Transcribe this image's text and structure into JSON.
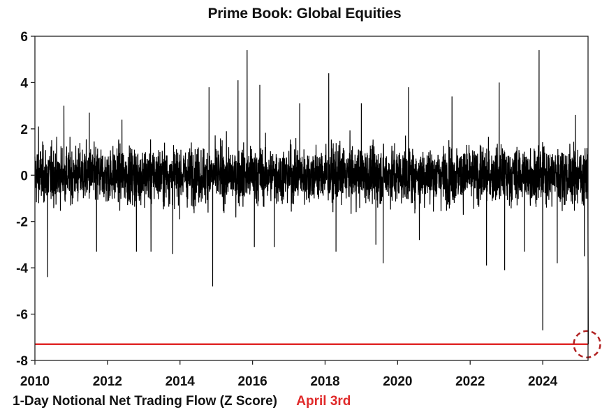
{
  "chart_data": {
    "type": "line",
    "title": "Prime Book: Global Equities",
    "xlabel": "",
    "ylabel": "",
    "xlim": [
      2010,
      2025.25
    ],
    "ylim": [
      -8,
      6
    ],
    "xticks": [
      "2010",
      "2012",
      "2014",
      "2016",
      "2018",
      "2020",
      "2022",
      "2024"
    ],
    "yticks": [
      "6",
      "4",
      "2",
      "0",
      "-2",
      "-4",
      "-6",
      "-8"
    ],
    "grid": false,
    "legend_position": "bottom-left",
    "series": [
      {
        "name": "1-Day Notional Net Trading Flow (Z Score)",
        "color": "#000000",
        "note_style": "dense daily noise around 0, roughly within -2 to 2",
        "spikes": [
          {
            "x": 2010.1,
            "y": 2.1
          },
          {
            "x": 2010.35,
            "y": -4.4
          },
          {
            "x": 2010.8,
            "y": 3.0
          },
          {
            "x": 2011.5,
            "y": 2.7
          },
          {
            "x": 2011.7,
            "y": -3.3
          },
          {
            "x": 2012.4,
            "y": 2.4
          },
          {
            "x": 2012.8,
            "y": -3.3
          },
          {
            "x": 2013.2,
            "y": -3.3
          },
          {
            "x": 2013.8,
            "y": -3.4
          },
          {
            "x": 2014.8,
            "y": 3.8
          },
          {
            "x": 2014.9,
            "y": -4.8
          },
          {
            "x": 2015.6,
            "y": 4.1
          },
          {
            "x": 2015.85,
            "y": 5.4
          },
          {
            "x": 2016.05,
            "y": -3.1
          },
          {
            "x": 2016.2,
            "y": 3.9
          },
          {
            "x": 2016.6,
            "y": -3.1
          },
          {
            "x": 2017.3,
            "y": 3.1
          },
          {
            "x": 2018.1,
            "y": 4.4
          },
          {
            "x": 2018.3,
            "y": -3.3
          },
          {
            "x": 2019.0,
            "y": 3.1
          },
          {
            "x": 2019.4,
            "y": -3.0
          },
          {
            "x": 2019.6,
            "y": -3.8
          },
          {
            "x": 2020.3,
            "y": 3.8
          },
          {
            "x": 2020.6,
            "y": -2.8
          },
          {
            "x": 2021.5,
            "y": 3.4
          },
          {
            "x": 2022.45,
            "y": -3.9
          },
          {
            "x": 2022.8,
            "y": 4.0
          },
          {
            "x": 2022.95,
            "y": -4.1
          },
          {
            "x": 2023.5,
            "y": -3.3
          },
          {
            "x": 2023.9,
            "y": 5.4
          },
          {
            "x": 2024.0,
            "y": -6.7
          },
          {
            "x": 2024.4,
            "y": -3.8
          },
          {
            "x": 2024.9,
            "y": 2.6
          },
          {
            "x": 2025.15,
            "y": -3.5
          },
          {
            "x": 2025.26,
            "y": -7.3
          }
        ]
      },
      {
        "name": "April 3rd",
        "color": "#e02a2a",
        "type": "hline",
        "y": -7.3
      }
    ],
    "annotations": [
      {
        "type": "dashed-circle",
        "x": 2025.26,
        "y": -7.3,
        "color": "#b22222"
      }
    ]
  }
}
